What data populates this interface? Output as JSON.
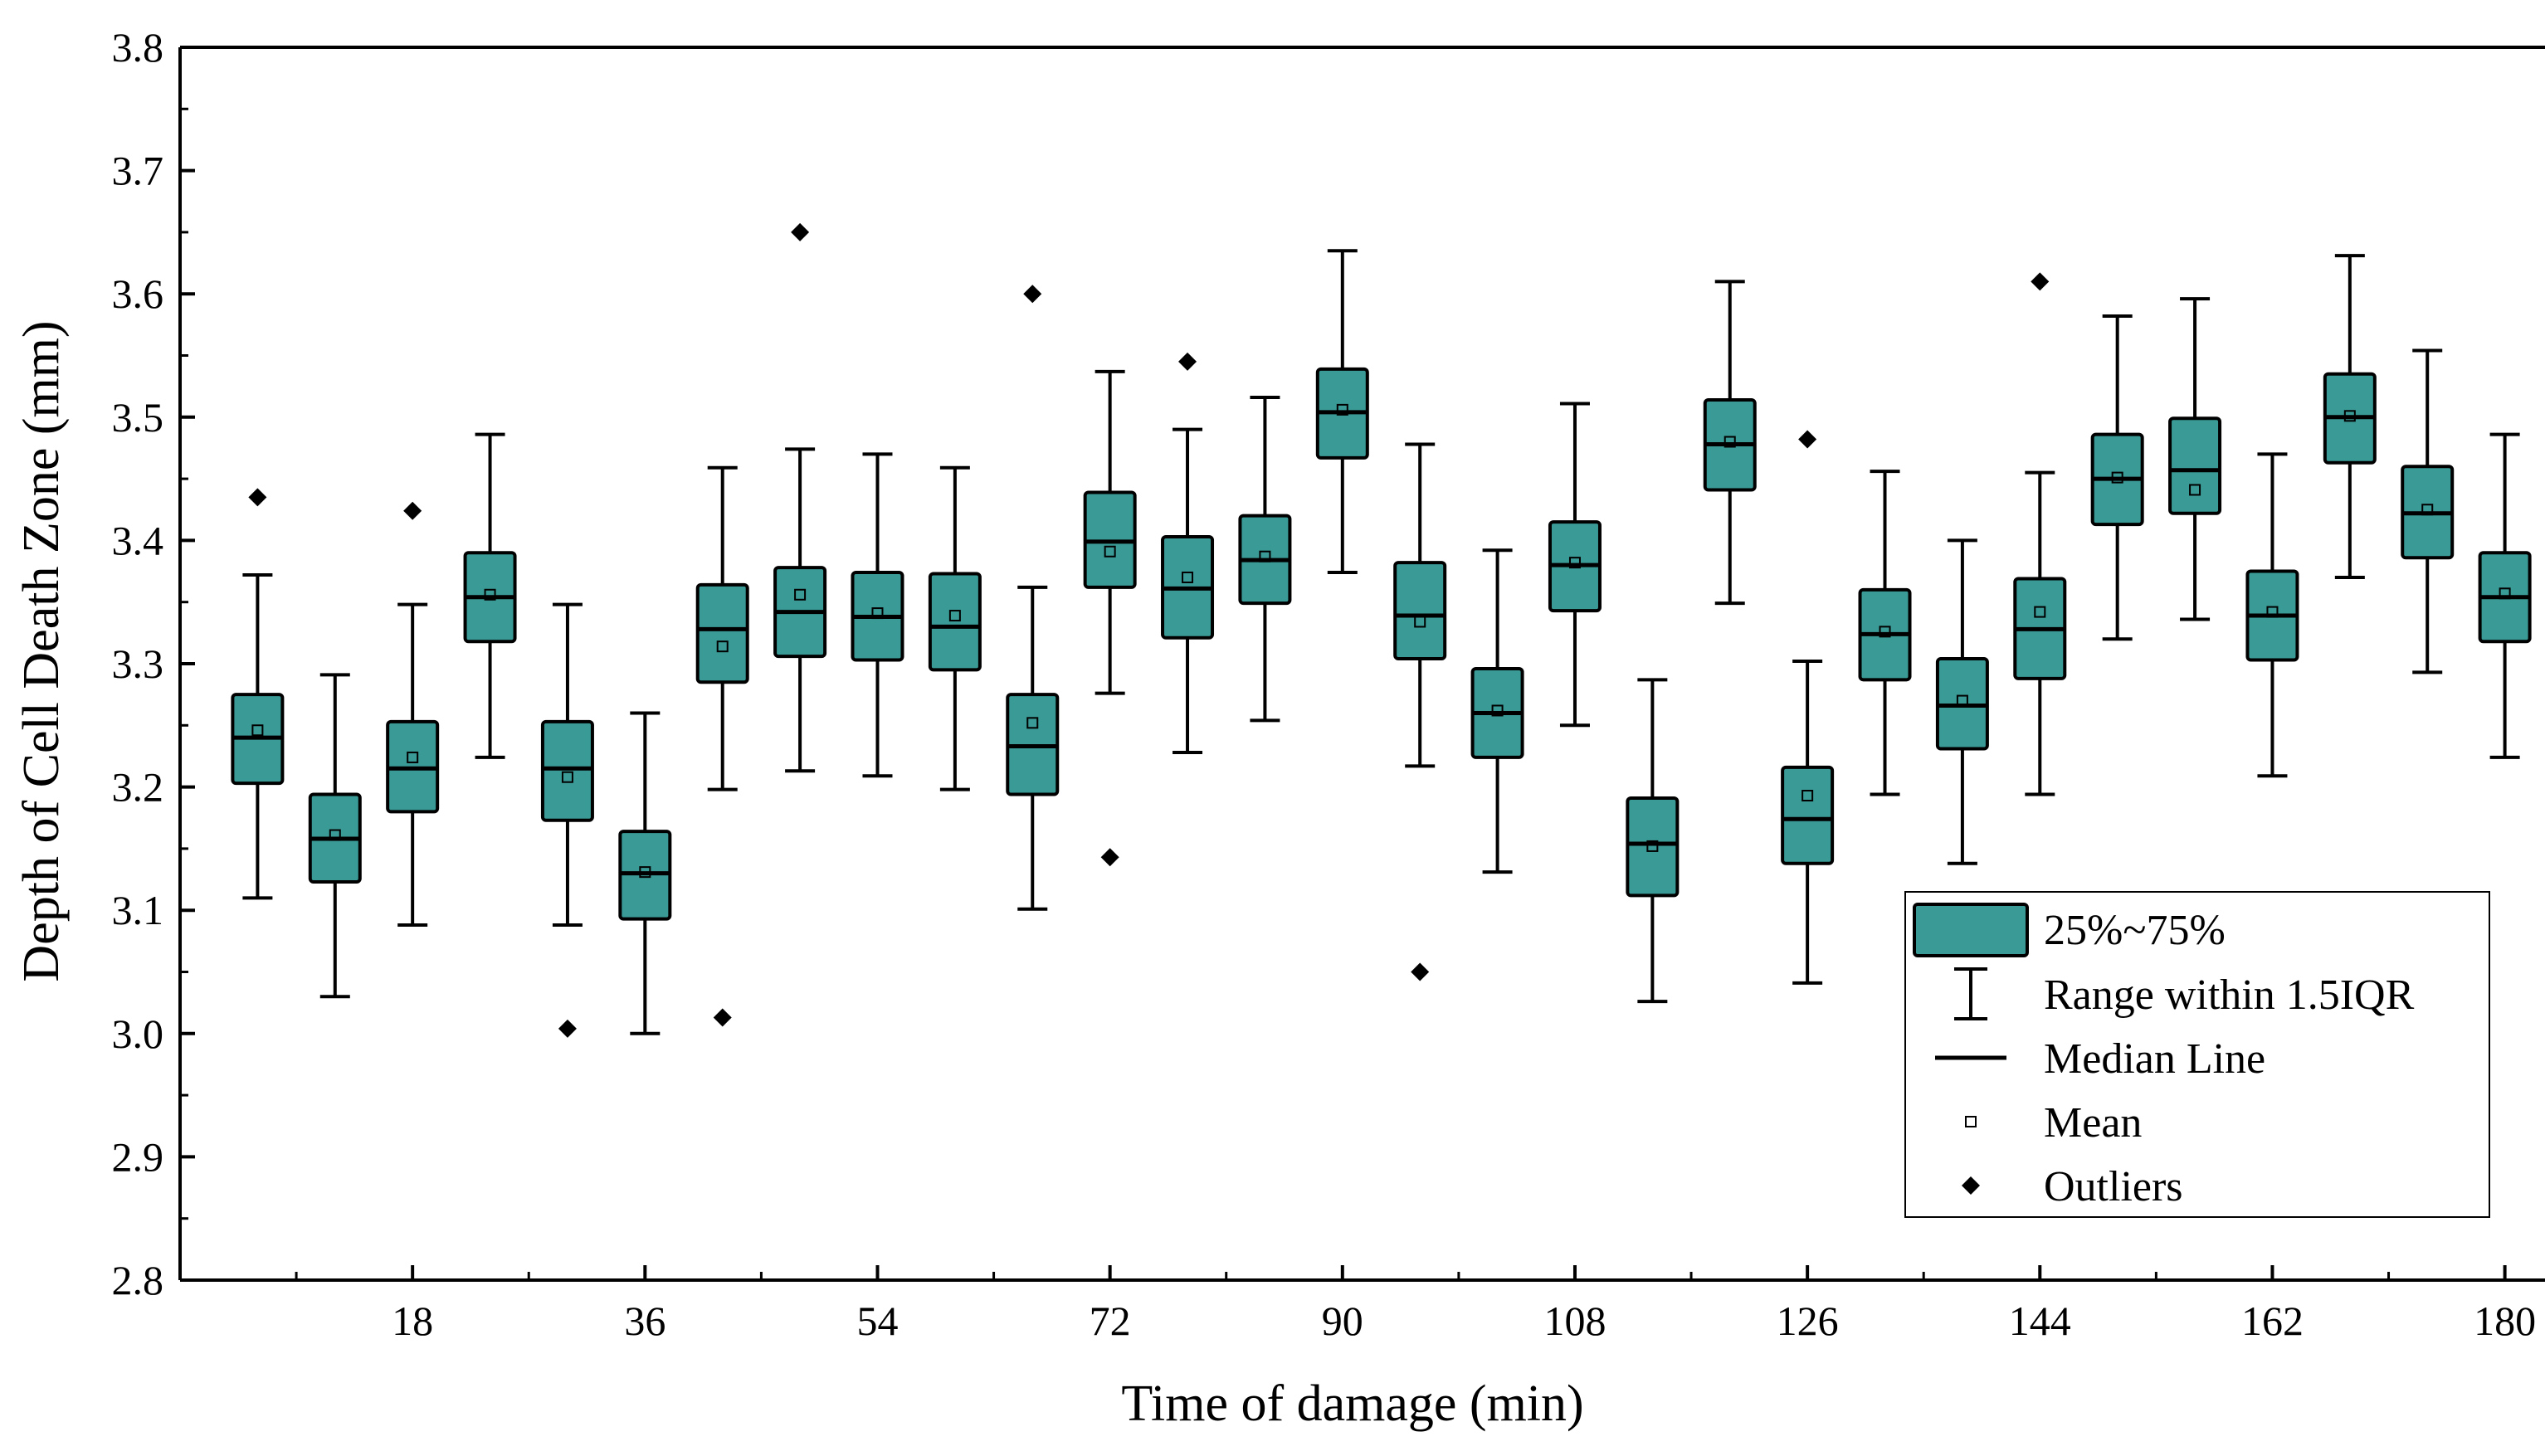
{
  "colors": {
    "box_fill": "#3A9A96",
    "stroke": "#000000",
    "background": "#ffffff"
  },
  "chart_data": {
    "type": "box",
    "xlabel": "Time of damage (min)",
    "ylabel": "Depth of Cell Death Zone (mm)",
    "xlim": [
      0,
      186
    ],
    "ylim": [
      2.8,
      3.8
    ],
    "x_ticks": [
      18,
      36,
      54,
      72,
      90,
      108,
      126,
      144,
      162,
      180
    ],
    "y_ticks": [
      2.8,
      2.9,
      3.0,
      3.1,
      3.2,
      3.3,
      3.4,
      3.5,
      3.6,
      3.7,
      3.8
    ],
    "y_tick_labels": [
      "2.8",
      "2.9",
      "3.0",
      "3.1",
      "3.2",
      "3.3",
      "3.4",
      "3.5",
      "3.6",
      "3.7",
      "3.8"
    ],
    "legend": {
      "position": "bottom-right",
      "entries": [
        "25%~75%",
        "Range within 1.5IQR",
        "Median Line",
        "Mean",
        "Outliers"
      ]
    },
    "series": [
      {
        "x": 6,
        "whisker_low": 3.11,
        "q1": 3.203,
        "median": 3.24,
        "q3": 3.275,
        "whisker_high": 3.372,
        "mean": 3.246,
        "outliers": [
          3.435
        ]
      },
      {
        "x": 12,
        "whisker_low": 3.03,
        "q1": 3.123,
        "median": 3.158,
        "q3": 3.194,
        "whisker_high": 3.291,
        "mean": 3.161,
        "outliers": []
      },
      {
        "x": 18,
        "whisker_low": 3.088,
        "q1": 3.18,
        "median": 3.215,
        "q3": 3.253,
        "whisker_high": 3.348,
        "mean": 3.224,
        "outliers": [
          3.424
        ]
      },
      {
        "x": 24,
        "whisker_low": 3.224,
        "q1": 3.318,
        "median": 3.354,
        "q3": 3.39,
        "whisker_high": 3.486,
        "mean": 3.356,
        "outliers": []
      },
      {
        "x": 30,
        "whisker_low": 3.088,
        "q1": 3.173,
        "median": 3.215,
        "q3": 3.253,
        "whisker_high": 3.348,
        "mean": 3.208,
        "outliers": [
          3.004
        ]
      },
      {
        "x": 36,
        "whisker_low": 3.0,
        "q1": 3.093,
        "median": 3.13,
        "q3": 3.164,
        "whisker_high": 3.26,
        "mean": 3.131,
        "outliers": []
      },
      {
        "x": 42,
        "whisker_low": 3.198,
        "q1": 3.285,
        "median": 3.328,
        "q3": 3.364,
        "whisker_high": 3.459,
        "mean": 3.314,
        "outliers": [
          3.013
        ]
      },
      {
        "x": 48,
        "whisker_low": 3.213,
        "q1": 3.306,
        "median": 3.342,
        "q3": 3.378,
        "whisker_high": 3.474,
        "mean": 3.356,
        "outliers": [
          3.65
        ]
      },
      {
        "x": 54,
        "whisker_low": 3.209,
        "q1": 3.303,
        "median": 3.338,
        "q3": 3.374,
        "whisker_high": 3.47,
        "mean": 3.341,
        "outliers": []
      },
      {
        "x": 60,
        "whisker_low": 3.198,
        "q1": 3.295,
        "median": 3.33,
        "q3": 3.373,
        "whisker_high": 3.459,
        "mean": 3.339,
        "outliers": []
      },
      {
        "x": 66,
        "whisker_low": 3.101,
        "q1": 3.194,
        "median": 3.233,
        "q3": 3.275,
        "whisker_high": 3.362,
        "mean": 3.252,
        "outliers": [
          3.6
        ]
      },
      {
        "x": 72,
        "whisker_low": 3.276,
        "q1": 3.362,
        "median": 3.399,
        "q3": 3.439,
        "whisker_high": 3.537,
        "mean": 3.391,
        "outliers": [
          3.143
        ]
      },
      {
        "x": 78,
        "whisker_low": 3.228,
        "q1": 3.321,
        "median": 3.361,
        "q3": 3.403,
        "whisker_high": 3.49,
        "mean": 3.37,
        "outliers": [
          3.545
        ]
      },
      {
        "x": 84,
        "whisker_low": 3.254,
        "q1": 3.349,
        "median": 3.384,
        "q3": 3.42,
        "whisker_high": 3.516,
        "mean": 3.387,
        "outliers": []
      },
      {
        "x": 90,
        "whisker_low": 3.374,
        "q1": 3.467,
        "median": 3.504,
        "q3": 3.539,
        "whisker_high": 3.635,
        "mean": 3.506,
        "outliers": []
      },
      {
        "x": 96,
        "whisker_low": 3.217,
        "q1": 3.304,
        "median": 3.339,
        "q3": 3.382,
        "whisker_high": 3.478,
        "mean": 3.334,
        "outliers": [
          3.05
        ]
      },
      {
        "x": 102,
        "whisker_low": 3.131,
        "q1": 3.224,
        "median": 3.26,
        "q3": 3.296,
        "whisker_high": 3.392,
        "mean": 3.262,
        "outliers": []
      },
      {
        "x": 108,
        "whisker_low": 3.25,
        "q1": 3.343,
        "median": 3.38,
        "q3": 3.415,
        "whisker_high": 3.511,
        "mean": 3.382,
        "outliers": []
      },
      {
        "x": 114,
        "whisker_low": 3.026,
        "q1": 3.112,
        "median": 3.154,
        "q3": 3.191,
        "whisker_high": 3.287,
        "mean": 3.152,
        "outliers": []
      },
      {
        "x": 120,
        "whisker_low": 3.349,
        "q1": 3.441,
        "median": 3.478,
        "q3": 3.514,
        "whisker_high": 3.61,
        "mean": 3.48,
        "outliers": []
      },
      {
        "x": 126,
        "whisker_low": 3.041,
        "q1": 3.138,
        "median": 3.174,
        "q3": 3.216,
        "whisker_high": 3.302,
        "mean": 3.193,
        "outliers": [
          3.482
        ]
      },
      {
        "x": 132,
        "whisker_low": 3.194,
        "q1": 3.287,
        "median": 3.324,
        "q3": 3.36,
        "whisker_high": 3.456,
        "mean": 3.326,
        "outliers": []
      },
      {
        "x": 138,
        "whisker_low": 3.138,
        "q1": 3.231,
        "median": 3.266,
        "q3": 3.304,
        "whisker_high": 3.4,
        "mean": 3.27,
        "outliers": []
      },
      {
        "x": 144,
        "whisker_low": 3.194,
        "q1": 3.288,
        "median": 3.328,
        "q3": 3.369,
        "whisker_high": 3.455,
        "mean": 3.342,
        "outliers": [
          3.61
        ]
      },
      {
        "x": 150,
        "whisker_low": 3.32,
        "q1": 3.413,
        "median": 3.45,
        "q3": 3.486,
        "whisker_high": 3.582,
        "mean": 3.451,
        "outliers": []
      },
      {
        "x": 156,
        "whisker_low": 3.336,
        "q1": 3.422,
        "median": 3.457,
        "q3": 3.499,
        "whisker_high": 3.596,
        "mean": 3.441,
        "outliers": []
      },
      {
        "x": 162,
        "whisker_low": 3.209,
        "q1": 3.303,
        "median": 3.339,
        "q3": 3.375,
        "whisker_high": 3.47,
        "mean": 3.342,
        "outliers": []
      },
      {
        "x": 168,
        "whisker_low": 3.37,
        "q1": 3.463,
        "median": 3.5,
        "q3": 3.535,
        "whisker_high": 3.631,
        "mean": 3.501,
        "outliers": []
      },
      {
        "x": 174,
        "whisker_low": 3.293,
        "q1": 3.386,
        "median": 3.422,
        "q3": 3.46,
        "whisker_high": 3.554,
        "mean": 3.425,
        "outliers": []
      },
      {
        "x": 180,
        "whisker_low": 3.224,
        "q1": 3.318,
        "median": 3.354,
        "q3": 3.39,
        "whisker_high": 3.486,
        "mean": 3.357,
        "outliers": []
      }
    ]
  }
}
